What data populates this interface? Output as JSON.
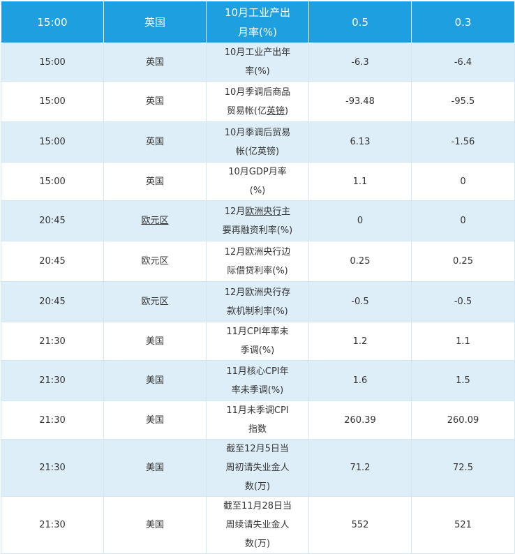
{
  "header": {
    "time": "15:00",
    "region": "英国",
    "event": "10月工业产出月率(%)",
    "previous": "0.5",
    "forecast": "0.3"
  },
  "rows": [
    {
      "time": "15:00",
      "region": "英国",
      "event": "10月工业产出年率(%)",
      "previous": "-6.3",
      "forecast": "-6.4"
    },
    {
      "time": "15:00",
      "region": "英国",
      "event_pre": "10月季调后商品贸易帐(亿",
      "event_link": "英镑",
      "event_post": ")",
      "previous": "-93.48",
      "forecast": "-95.5"
    },
    {
      "time": "15:00",
      "region": "英国",
      "event": "10月季调后贸易帐(亿英镑)",
      "previous": "6.13",
      "forecast": "-1.56"
    },
    {
      "time": "15:00",
      "region": "英国",
      "event": "10月GDP月率(%)",
      "previous": "1.1",
      "forecast": "0"
    },
    {
      "time": "20:45",
      "region": "欧元区",
      "event_pre": "12月",
      "event_link": "欧洲央行",
      "event_post": "主要再融资利率(%)",
      "previous": "0",
      "forecast": "0"
    },
    {
      "time": "20:45",
      "region": "欧元区",
      "event": "12月欧洲央行边际借贷利率(%)",
      "previous": "0.25",
      "forecast": "0.25"
    },
    {
      "time": "20:45",
      "region": "欧元区",
      "event": "12月欧洲央行存款机制利率(%)",
      "previous": "-0.5",
      "forecast": "-0.5"
    },
    {
      "time": "21:30",
      "region": "美国",
      "event": "11月CPI年率未季调(%)",
      "previous": "1.2",
      "forecast": "1.1"
    },
    {
      "time": "21:30",
      "region": "美国",
      "event": "11月核心CPI年率未季调(%)",
      "previous": "1.6",
      "forecast": "1.5"
    },
    {
      "time": "21:30",
      "region": "美国",
      "event": "11月未季调CPI指数",
      "previous": "260.39",
      "forecast": "260.09"
    },
    {
      "time": "21:30",
      "region": "美国",
      "event": "截至12月5日当周初请失业金人数(万)",
      "previous": "71.2",
      "forecast": "72.5"
    },
    {
      "time": "21:30",
      "region": "美国",
      "event": "截至11月28日当周续请失业金人数(万)",
      "previous": "552",
      "forecast": "521"
    }
  ]
}
